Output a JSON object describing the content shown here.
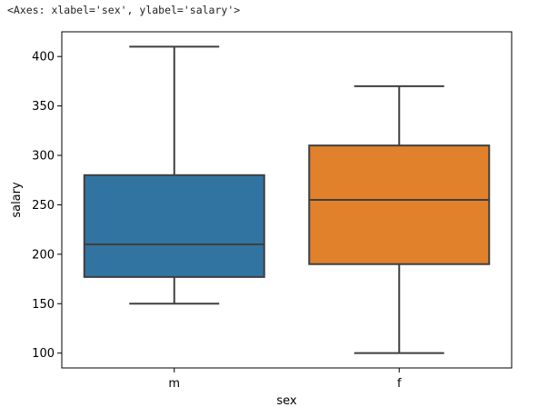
{
  "output_repr": "<Axes: xlabel='sex', ylabel='salary'>",
  "chart_data": {
    "type": "box",
    "title": "",
    "xlabel": "sex",
    "ylabel": "salary",
    "categories": [
      "m",
      "f"
    ],
    "ylim": [
      85,
      425
    ],
    "yticks": [
      100,
      150,
      200,
      250,
      300,
      350,
      400
    ],
    "grid": false,
    "legend": "none",
    "boxes": [
      {
        "category": "m",
        "whisker_low": 150,
        "q1": 177,
        "median": 210,
        "q3": 280,
        "whisker_high": 410,
        "color": "#3274a1"
      },
      {
        "category": "f",
        "whisker_low": 100,
        "q1": 190,
        "median": 255,
        "q3": 310,
        "whisker_high": 370,
        "color": "#e1812c"
      }
    ],
    "line_color": "#3f3f3f"
  }
}
